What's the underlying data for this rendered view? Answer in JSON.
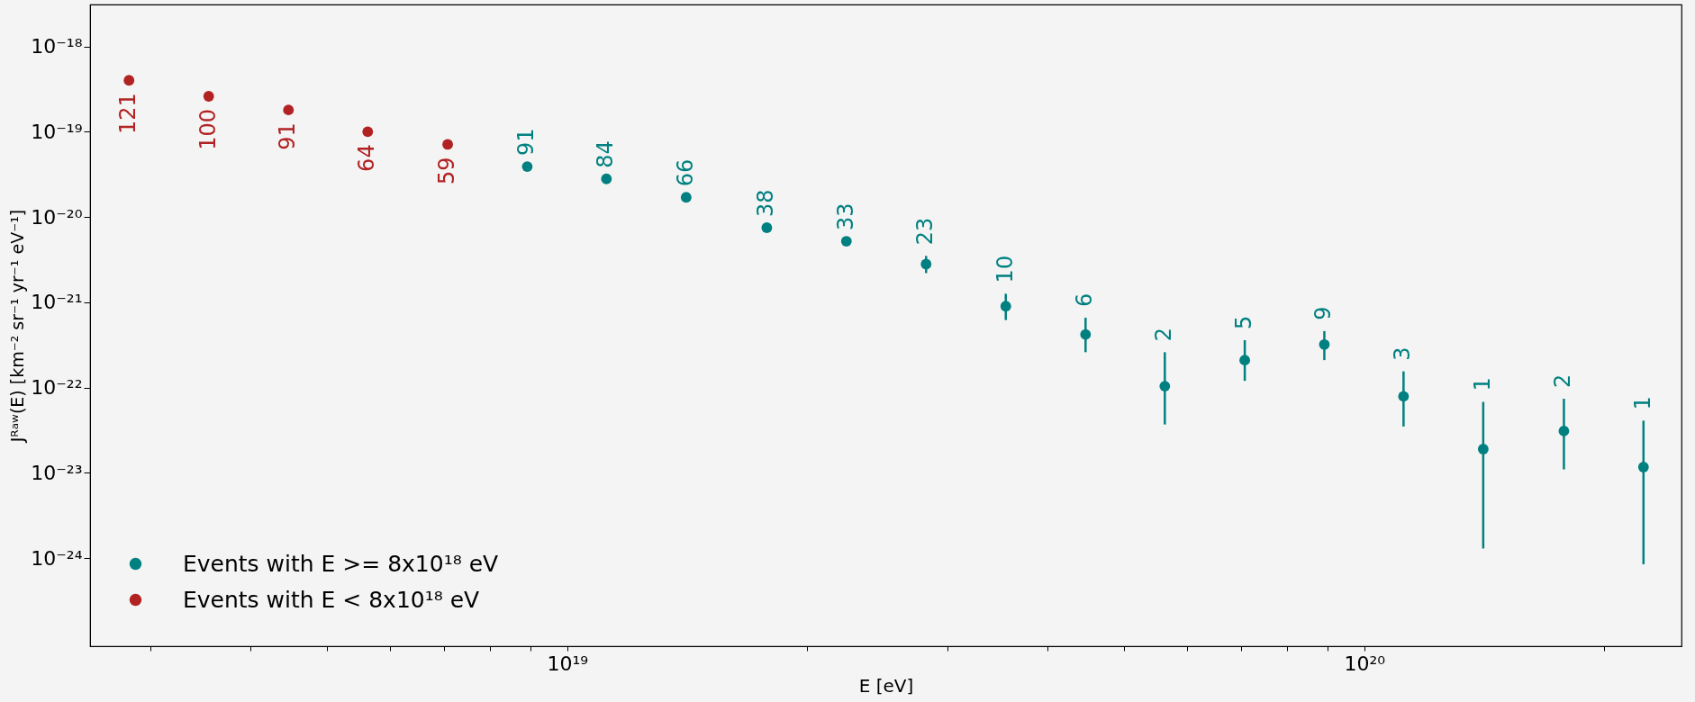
{
  "chart_data": {
    "type": "scatter",
    "xlabel": "E [eV]",
    "ylabel": "Jᴿᵃʷ(E) [km⁻² sr⁻¹ yr⁻¹ eV⁻¹]",
    "log": "xy",
    "grid": false,
    "legend": "bottom left",
    "marker": "circle",
    "xlim": [
      2.52e+18,
      2.5e+20
    ],
    "ylim": [
      9.3e-26,
      3.1e-18
    ],
    "xticks": [
      {
        "value": 3e+18,
        "label": null
      },
      {
        "value": 4e+18,
        "label": null
      },
      {
        "value": 5e+18,
        "label": null
      },
      {
        "value": 6e+18,
        "label": null
      },
      {
        "value": 7e+18,
        "label": null
      },
      {
        "value": 8e+18,
        "label": null
      },
      {
        "value": 9e+18,
        "label": null
      },
      {
        "value": 1e+19,
        "label": "10¹⁹"
      },
      {
        "value": 2e+19,
        "label": null
      },
      {
        "value": 3e+19,
        "label": null
      },
      {
        "value": 4e+19,
        "label": null
      },
      {
        "value": 5e+19,
        "label": null
      },
      {
        "value": 6e+19,
        "label": null
      },
      {
        "value": 7e+19,
        "label": null
      },
      {
        "value": 8e+19,
        "label": null
      },
      {
        "value": 9e+19,
        "label": null
      },
      {
        "value": 1e+20,
        "label": "10²⁰"
      },
      {
        "value": 2e+20,
        "label": null
      }
    ],
    "yticks": [
      {
        "value": 1e-24,
        "label": "10⁻²⁴"
      },
      {
        "value": 1e-23,
        "label": "10⁻²³"
      },
      {
        "value": 1e-22,
        "label": "10⁻²²"
      },
      {
        "value": 1e-21,
        "label": "10⁻²¹"
      },
      {
        "value": 1e-20,
        "label": "10⁻²⁰"
      },
      {
        "value": 1e-19,
        "label": "10⁻¹⁹"
      },
      {
        "value": 1e-18,
        "label": "10⁻¹⁸"
      }
    ],
    "series": [
      {
        "name": "Events with E >= 8x10¹⁸ eV",
        "color": "#008080",
        "x": [
          8.91e+18,
          1.12e+19,
          1.41e+19,
          1.78e+19,
          2.24e+19,
          2.82e+19,
          3.55e+19,
          4.47e+19,
          5.62e+19,
          7.08e+19,
          8.91e+19,
          1.12e+20,
          1.41e+20,
          1.78e+20,
          2.24e+20
        ],
        "values": [
          3.9e-20,
          2.8e-20,
          1.7e-20,
          7.5e-21,
          5.2e-21,
          2.8e-21,
          9e-22,
          4.2e-22,
          1.04e-22,
          2.1e-22,
          3.2e-22,
          7.9e-23,
          1.9e-23,
          3.1e-23,
          1.17e-23
        ],
        "errors": [
          null,
          null,
          null,
          null,
          null,
          [
            2.2e-21,
            3.5e-21
          ],
          [
            6.2e-22,
            1.26e-21
          ],
          [
            2.6e-22,
            6.6e-22
          ],
          [
            3.7e-23,
            2.6e-22
          ],
          [
            1.2e-22,
            3.6e-22
          ],
          [
            2.1e-22,
            4.6e-22
          ],
          [
            3.5e-23,
            1.55e-22
          ],
          [
            1.3e-24,
            6.8e-23
          ],
          [
            1.1e-23,
            7.4e-23
          ],
          [
            8.5e-25,
            4.1e-23
          ]
        ]
      },
      {
        "name": "Events with E < 8x10¹⁸ eV",
        "color": "#b22222",
        "x": [
          2.82e+18,
          3.55e+18,
          4.47e+18,
          5.62e+18,
          7.08e+18
        ],
        "values": [
          4e-19,
          2.6e-19,
          1.8e-19,
          1e-19,
          7.1e-20
        ]
      }
    ],
    "annotations": [
      {
        "text": "121",
        "x": 2.82e+18,
        "y": 4e-19
      },
      {
        "text": "100",
        "x": 3.55e+18,
        "y": 2.6e-19
      },
      {
        "text": "91",
        "x": 4.47e+18,
        "y": 1.8e-19
      },
      {
        "text": "64",
        "x": 5.62e+18,
        "y": 1e-19
      },
      {
        "text": "59",
        "x": 7.08e+18,
        "y": 7.1e-20
      },
      {
        "text": "91",
        "x": 8.91e+18,
        "y": 3.9e-20
      },
      {
        "text": "84",
        "x": 1.12e+19,
        "y": 2.8e-20
      },
      {
        "text": "66",
        "x": 1.41e+19,
        "y": 1.7e-20
      },
      {
        "text": "38",
        "x": 1.78e+19,
        "y": 7.5e-21
      },
      {
        "text": "33",
        "x": 2.24e+19,
        "y": 5.2e-21
      },
      {
        "text": "23",
        "x": 2.82e+19,
        "y": 2.8e-21
      },
      {
        "text": "10",
        "x": 3.55e+19,
        "y": 9e-22
      },
      {
        "text": "6",
        "x": 4.47e+19,
        "y": 4.2e-22
      },
      {
        "text": "2",
        "x": 5.62e+19,
        "y": 1.04e-22
      },
      {
        "text": "5",
        "x": 7.08e+19,
        "y": 2.1e-22
      },
      {
        "text": "9",
        "x": 8.91e+19,
        "y": 3.2e-22
      },
      {
        "text": "3",
        "x": 1.12e+20,
        "y": 7.9e-23
      },
      {
        "text": "1",
        "x": 1.41e+20,
        "y": 1.9e-23
      },
      {
        "text": "2",
        "x": 1.78e+20,
        "y": 3.1e-23
      },
      {
        "text": "1",
        "x": 2.24e+20,
        "y": 1.17e-23
      }
    ]
  }
}
